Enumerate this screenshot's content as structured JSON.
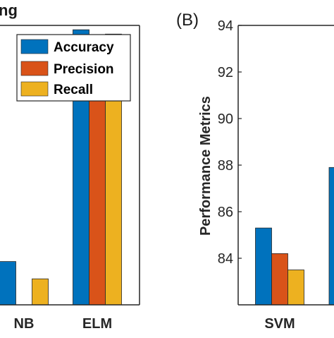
{
  "chart_data": [
    {
      "panel_label": "",
      "title": "ng",
      "type": "bar",
      "categories": [
        "NB",
        "ELM"
      ],
      "series": [
        {
          "name": "Accuracy",
          "color": "#0072BD",
          "values": [
            83.3,
            94.0
          ]
        },
        {
          "name": "Precision",
          "color": "#D95319",
          "values": [
            null,
            93.7
          ]
        },
        {
          "name": "Recall",
          "color": "#EDB120",
          "values": [
            82.5,
            93.8
          ]
        }
      ],
      "ylim": [
        81.3,
        94.2
      ],
      "xlabel": "",
      "ylabel": "",
      "legend": "top-right",
      "grid": false
    },
    {
      "panel_label": "(B)",
      "title": "",
      "type": "bar",
      "categories": [
        "SVM"
      ],
      "series": [
        {
          "name": "Accuracy",
          "color": "#0072BD",
          "values": [
            85.3
          ]
        },
        {
          "name": "Precision",
          "color": "#D95319",
          "values": [
            84.2
          ]
        },
        {
          "name": "Recall",
          "color": "#EDB120",
          "values": [
            83.5
          ]
        }
      ],
      "partial_next_bar": {
        "color": "#0072BD",
        "value": 87.9
      },
      "ylim": [
        82.0,
        94.0
      ],
      "yticks": [
        84,
        86,
        88,
        90,
        92,
        94
      ],
      "xlabel": "",
      "ylabel": "Performance Metrics",
      "legend": "none",
      "grid": false
    }
  ]
}
